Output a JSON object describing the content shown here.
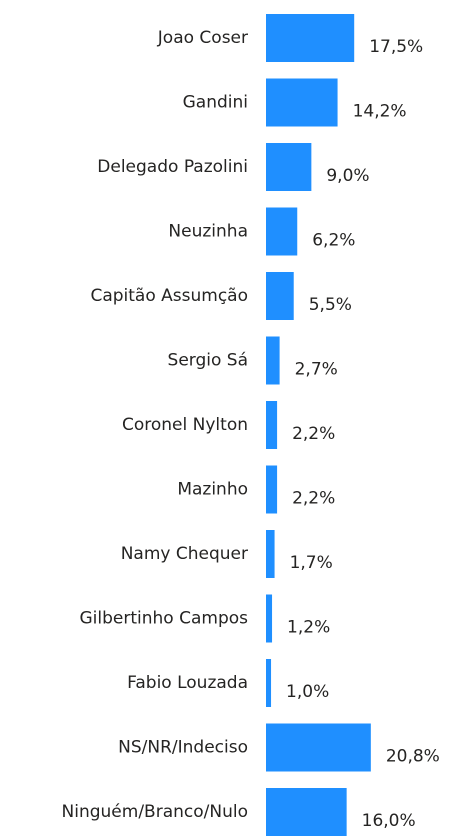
{
  "chart_data": {
    "type": "bar",
    "orientation": "horizontal",
    "color": "#1f8fff",
    "categories": [
      "Joao Coser",
      "Gandini",
      "Delegado Pazolini",
      "Neuzinha",
      "Capitão Assumção",
      "Sergio Sá",
      "Coronel Nylton",
      "Mazinho",
      "Namy Chequer",
      "Gilbertinho Campos",
      "Fabio Louzada",
      "NS/NR/Indeciso",
      "Ninguém/Branco/Nulo"
    ],
    "values": [
      17.5,
      14.2,
      9.0,
      6.2,
      5.5,
      2.7,
      2.2,
      2.2,
      1.7,
      1.2,
      1.0,
      20.8,
      16.0
    ],
    "value_labels": [
      "17,5%",
      "14,2%",
      "9,0%",
      "6,2%",
      "5,5%",
      "2,7%",
      "2,2%",
      "2,2%",
      "1,7%",
      "1,2%",
      "1,0%",
      "20,8%",
      "16,0%"
    ]
  }
}
